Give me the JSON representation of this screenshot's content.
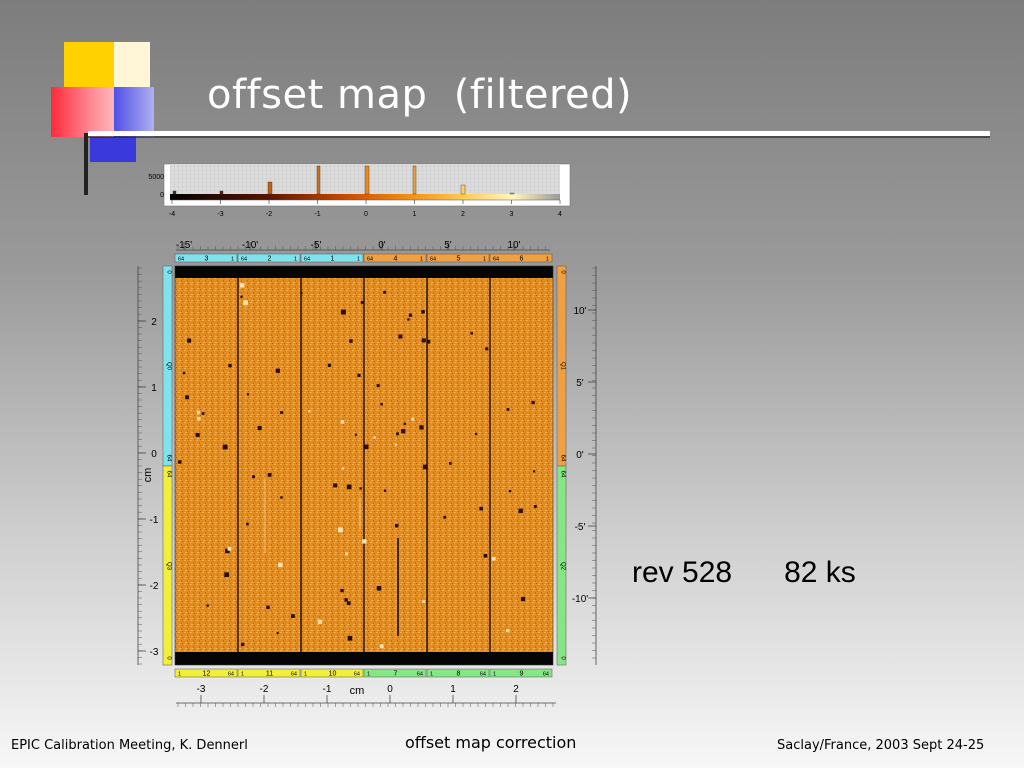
{
  "slide": {
    "title": "offset map  (filtered)",
    "annotation_rev": "rev 528",
    "annotation_exposure": "82 ks"
  },
  "footer": {
    "left": "EPIC Calibration Meeting, K. Dennerl",
    "center": "offset map correction",
    "right": "Saclay/France, 2003 Sept 24-25"
  },
  "histogram": {
    "y_ticks": [
      "5000",
      "0"
    ],
    "x_ticks": [
      "-4",
      "-3",
      "-2",
      "-1",
      "0",
      "1",
      "2",
      "3",
      "4"
    ]
  },
  "map": {
    "top_ticks": [
      "-15'",
      "-10'",
      "-5'",
      "0'",
      "5'",
      "10'"
    ],
    "top_ccds": [
      {
        "left": "64",
        "num": "3",
        "right": "1",
        "color": "cyan"
      },
      {
        "left": "64",
        "num": "2",
        "right": "1",
        "color": "cyan"
      },
      {
        "left": "64",
        "num": "1",
        "right": "1",
        "color": "cyan"
      },
      {
        "left": "64",
        "num": "4",
        "right": "1",
        "color": "orange"
      },
      {
        "left": "64",
        "num": "5",
        "right": "1",
        "color": "orange"
      },
      {
        "left": "64",
        "num": "6",
        "right": "1",
        "color": "orange"
      }
    ],
    "bottom_ccds": [
      {
        "left": "1",
        "num": "12",
        "right": "64",
        "color": "yellow"
      },
      {
        "left": "1",
        "num": "11",
        "right": "64",
        "color": "yellow"
      },
      {
        "left": "1",
        "num": "10",
        "right": "64",
        "color": "yellow"
      },
      {
        "left": "1",
        "num": "7",
        "right": "64",
        "color": "green"
      },
      {
        "left": "1",
        "num": "8",
        "right": "64",
        "color": "green"
      },
      {
        "left": "1",
        "num": "9",
        "right": "64",
        "color": "green"
      }
    ],
    "bottom_ticks": [
      "-3",
      "-2",
      "-1",
      "0",
      "1",
      "2"
    ],
    "bottom_unit": "cm",
    "left_ticks": [
      "2",
      "1",
      "0",
      "-1",
      "-2",
      "-3"
    ],
    "left_unit": "cm",
    "right_ticks": [
      "10'",
      "5'",
      "0'",
      "-5'",
      "-10'"
    ],
    "left_quadrant_labels": [
      "0",
      "Q0",
      "64",
      "64",
      "Q3",
      "0"
    ],
    "right_quadrant_labels": [
      "0",
      "Q1",
      "64",
      "64",
      "Q2",
      "0"
    ],
    "colors": {
      "cyan": "#7fe3ee",
      "orange": "#f0a040",
      "yellow": "#f2ef3a",
      "green": "#86e686",
      "map_base": "#e08a22"
    }
  }
}
